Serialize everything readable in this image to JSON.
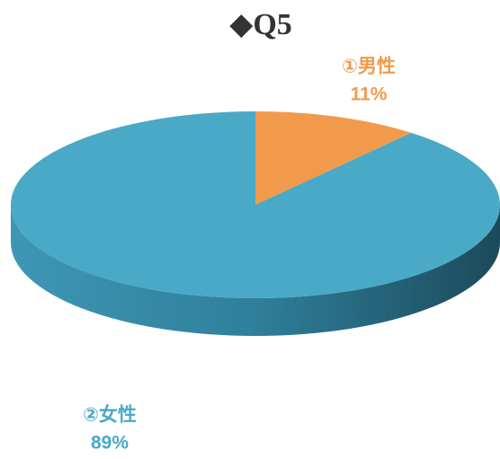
{
  "chart_data": {
    "type": "pie",
    "title": "◆Q5",
    "categories": [
      "①男性",
      "②女性"
    ],
    "values": [
      11,
      89
    ],
    "value_labels": [
      "11%",
      "89%"
    ],
    "colors": [
      "#f29a4b",
      "#4aa9c7"
    ]
  }
}
